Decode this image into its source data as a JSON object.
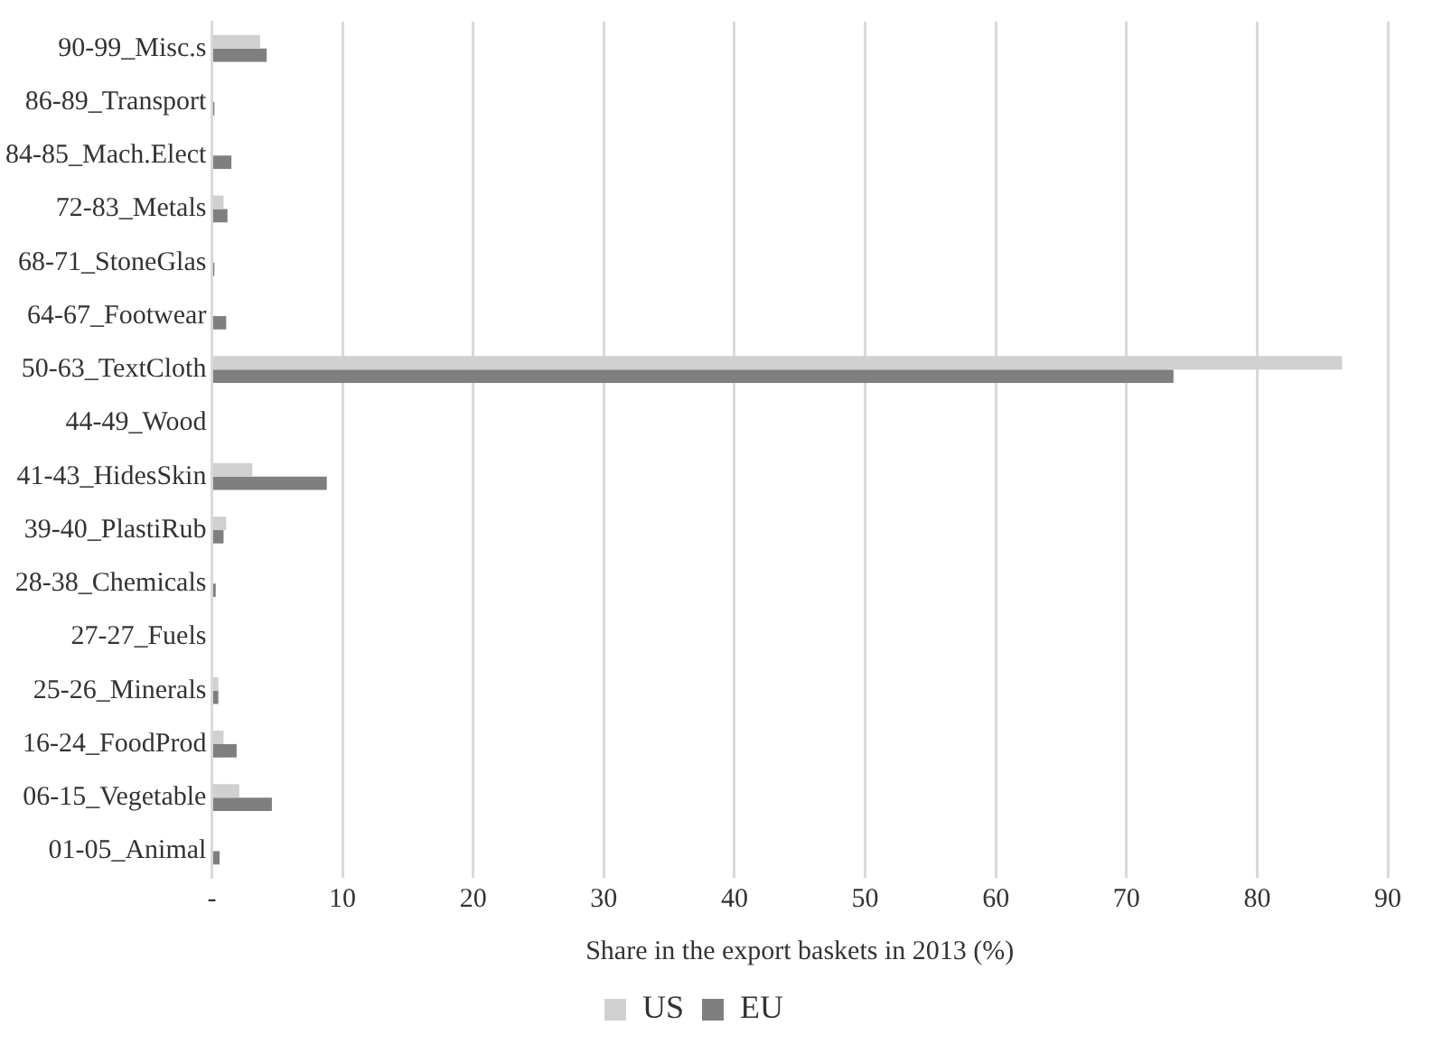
{
  "chart_data": {
    "type": "bar",
    "orientation": "horizontal",
    "xlabel": "Share in the export baskets in 2013 (%)",
    "categories": [
      "90-99_Misc.s",
      "86-89_Transport",
      "84-85_Mach.Elect",
      "72-83_Metals",
      "68-71_StoneGlas",
      "64-67_Footwear",
      "50-63_TextCloth",
      "44-49_Wood",
      "41-43_HidesSkin",
      "39-40_PlastiRub",
      "28-38_Chemicals",
      "27-27_Fuels",
      "25-26_Minerals",
      "16-24_FoodProd",
      "06-15_Vegetable",
      "01-05_Animal"
    ],
    "series": [
      {
        "name": "US",
        "color": "#d0d0d0",
        "values": [
          3.7,
          0.1,
          null,
          0.9,
          0.1,
          0,
          86.5,
          0,
          3.1,
          1.1,
          0.1,
          0,
          0.5,
          0.9,
          2.1,
          0
        ]
      },
      {
        "name": "EU",
        "color": "#7f7f7f",
        "values": [
          4.2,
          0.2,
          1.5,
          1.2,
          0.2,
          1.1,
          73.6,
          0,
          8.8,
          0.9,
          0.3,
          0,
          0.5,
          1.9,
          4.6,
          0.6
        ]
      }
    ],
    "xlim": [
      0,
      90
    ],
    "xticks": [
      {
        "value": 0,
        "label": "-"
      },
      10,
      20,
      30,
      40,
      50,
      60,
      70,
      80,
      90
    ],
    "grid": "x",
    "legend": "bottom"
  }
}
